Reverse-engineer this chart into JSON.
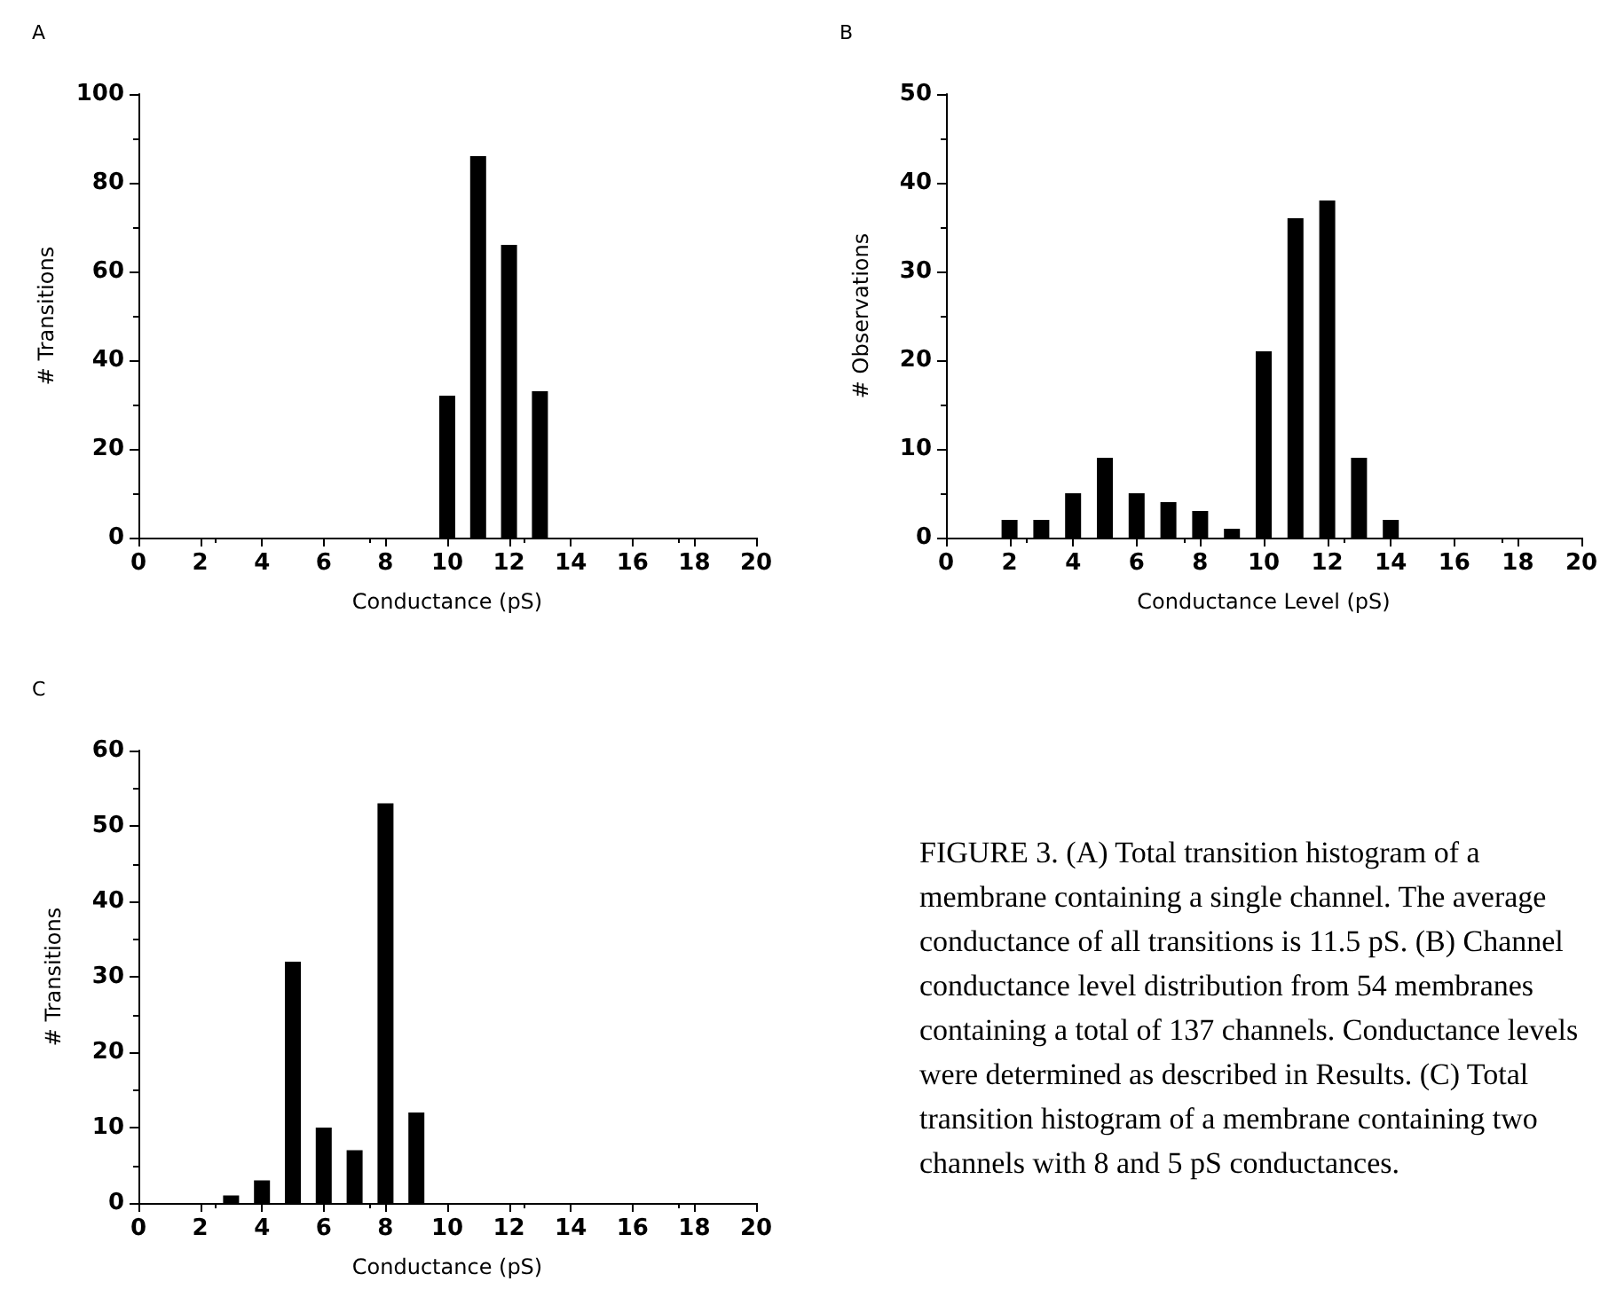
{
  "chart_data": [
    {
      "type": "bar",
      "title": "A",
      "xlabel": "Conductance (pS)",
      "ylabel": "# Transitions",
      "x": [
        10,
        11,
        12,
        13
      ],
      "values": [
        32,
        86,
        66,
        33
      ],
      "color": "#000000",
      "xlim": [
        0,
        20
      ],
      "xticks": [
        0,
        2,
        4,
        6,
        8,
        10,
        12,
        14,
        16,
        18,
        20
      ],
      "ylim": [
        0,
        100
      ],
      "yticks": [
        0,
        20,
        40,
        60,
        80,
        100
      ]
    },
    {
      "type": "bar",
      "title": "B",
      "xlabel": "Conductance Level (pS)",
      "ylabel": "# Observations",
      "x": [
        2,
        3,
        4,
        5,
        6,
        7,
        8,
        9,
        10,
        11,
        12,
        13,
        14
      ],
      "values": [
        2,
        2,
        5,
        9,
        5,
        4,
        3,
        1,
        21,
        36,
        38,
        9,
        2
      ],
      "color": "#000000",
      "xlim": [
        0,
        20
      ],
      "xticks": [
        0,
        2,
        4,
        6,
        8,
        10,
        12,
        14,
        16,
        18,
        20
      ],
      "ylim": [
        0,
        50
      ],
      "yticks": [
        0,
        10,
        20,
        30,
        40,
        50
      ]
    },
    {
      "type": "bar",
      "title": "C",
      "xlabel": "Conductance (pS)",
      "ylabel": "# Transitions",
      "x": [
        3,
        4,
        5,
        6,
        7,
        8,
        9
      ],
      "values": [
        1,
        3,
        32,
        10,
        7,
        53,
        12
      ],
      "color": "#000000",
      "xlim": [
        0,
        20
      ],
      "xticks": [
        0,
        2,
        4,
        6,
        8,
        10,
        12,
        14,
        16,
        18,
        20
      ],
      "ylim": [
        0,
        60
      ],
      "yticks": [
        0,
        10,
        20,
        30,
        40,
        50,
        60
      ]
    },
    {
      "type": "other",
      "annotations": [
        "FIGURE 3. (A) Total transition histogram of a membrane containing a single channel. The average conductance of all transitions is 11.5 pS. (B) Channel conductance level distribution from 54 membranes containing a total of 137 channels. Conductance levels were determined as described in Results. (C) Total transition histogram of a membrane containing two channels with 8 and 5 pS conductances."
      ]
    }
  ]
}
